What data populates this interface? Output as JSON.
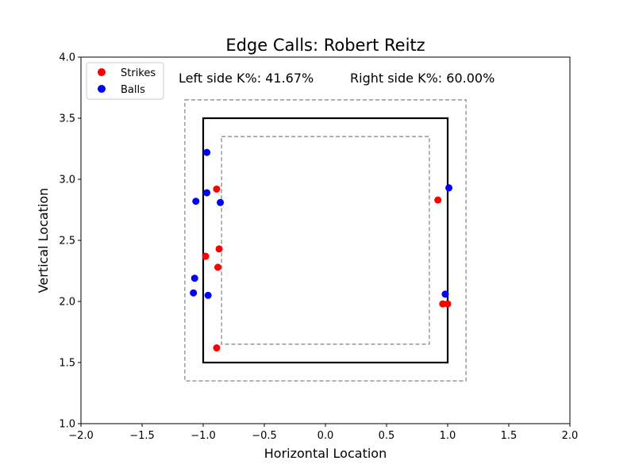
{
  "chart_data": {
    "type": "scatter",
    "title": "Edge Calls: Robert Reitz",
    "xlabel": "Horizontal Location",
    "ylabel": "Vertical Location",
    "xlim": [
      -2.0,
      2.0
    ],
    "ylim": [
      1.0,
      4.0
    ],
    "xticks": [
      -2.0,
      -1.5,
      -1.0,
      -0.5,
      0.0,
      0.5,
      1.0,
      1.5,
      2.0
    ],
    "yticks": [
      1.0,
      1.5,
      2.0,
      2.5,
      3.0,
      3.5,
      4.0
    ],
    "xtick_labels": [
      "−2.0",
      "−1.5",
      "−1.0",
      "−0.5",
      "0.0",
      "0.5",
      "1.0",
      "1.5",
      "2.0"
    ],
    "ytick_labels": [
      "1.0",
      "1.5",
      "2.0",
      "2.5",
      "3.0",
      "3.5",
      "4.0"
    ],
    "grid": false,
    "legend": {
      "placement": "top-left"
    },
    "annotations": {
      "left": "Left side K%: 41.67%",
      "right": "Right side K%: 60.00%"
    },
    "zones": {
      "strike_zone": {
        "x": [
          -1.0,
          1.0
        ],
        "y": [
          1.5,
          3.5
        ],
        "color": "#000000",
        "style": "solid"
      },
      "outer_edge": {
        "x": [
          -1.15,
          1.15
        ],
        "y": [
          1.35,
          3.65
        ],
        "color": "#808080",
        "style": "dashed"
      },
      "inner_edge": {
        "x": [
          -0.85,
          0.85
        ],
        "y": [
          1.65,
          3.35
        ],
        "color": "#808080",
        "style": "dashed"
      }
    },
    "series": [
      {
        "name": "Strikes",
        "color": "#ff0000",
        "points": [
          {
            "x": -0.89,
            "y": 2.92
          },
          {
            "x": -0.98,
            "y": 2.37
          },
          {
            "x": -0.87,
            "y": 2.43
          },
          {
            "x": -0.88,
            "y": 2.28
          },
          {
            "x": -0.89,
            "y": 1.62
          },
          {
            "x": 0.92,
            "y": 2.83
          },
          {
            "x": 0.96,
            "y": 1.98
          },
          {
            "x": 1.0,
            "y": 1.98
          }
        ]
      },
      {
        "name": "Balls",
        "color": "#0000ff",
        "points": [
          {
            "x": -0.97,
            "y": 3.22
          },
          {
            "x": -0.97,
            "y": 2.89
          },
          {
            "x": -1.06,
            "y": 2.82
          },
          {
            "x": -0.86,
            "y": 2.81
          },
          {
            "x": -1.07,
            "y": 2.19
          },
          {
            "x": -1.08,
            "y": 2.07
          },
          {
            "x": -0.96,
            "y": 2.05
          },
          {
            "x": 1.01,
            "y": 2.93
          },
          {
            "x": 0.98,
            "y": 2.06
          }
        ]
      }
    ]
  }
}
